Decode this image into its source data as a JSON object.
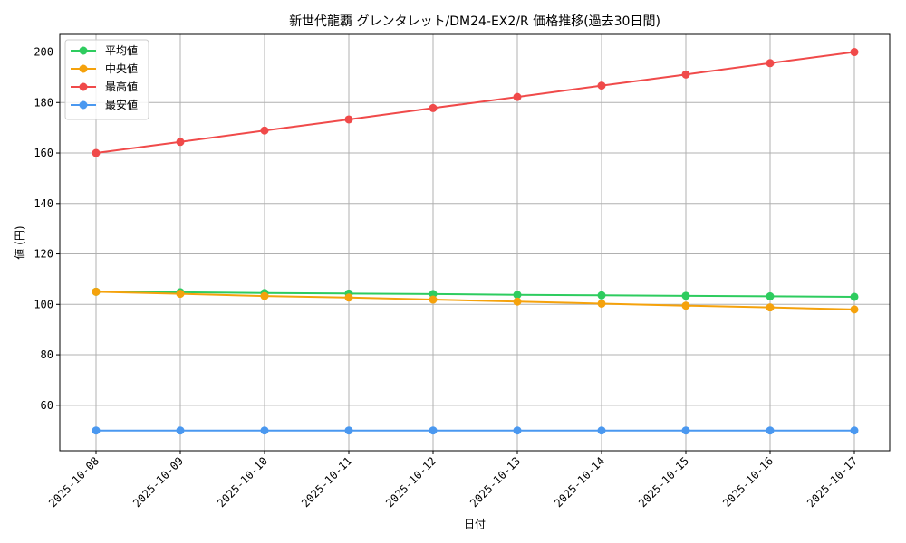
{
  "chart_data": {
    "type": "line",
    "title": "新世代龍覇 グレンタレット/DM24-EX2/R 価格推移(過去30日間)",
    "xlabel": "日付",
    "ylabel": "値 (円)",
    "categories": [
      "2025-10-08",
      "2025-10-09",
      "2025-10-10",
      "2025-10-11",
      "2025-10-12",
      "2025-10-13",
      "2025-10-14",
      "2025-10-15",
      "2025-10-16",
      "2025-10-17"
    ],
    "ylim": [
      42,
      207
    ],
    "yticks": [
      60,
      80,
      100,
      120,
      140,
      160,
      180,
      200
    ],
    "grid": true,
    "legend_position": "top-left",
    "series": [
      {
        "name": "平均値",
        "color": "#2ecc5f",
        "values": [
          105.0,
          104.8,
          104.5,
          104.3,
          104.1,
          103.8,
          103.6,
          103.4,
          103.2,
          103.0
        ]
      },
      {
        "name": "中央値",
        "color": "#f5a20c",
        "values": [
          105.0,
          104.2,
          103.3,
          102.7,
          101.9,
          101.1,
          100.3,
          99.5,
          98.8,
          98.0
        ]
      },
      {
        "name": "最高値",
        "color": "#f04a4a",
        "values": [
          160.0,
          164.4,
          168.9,
          173.3,
          177.8,
          182.2,
          186.7,
          191.1,
          195.6,
          200.0
        ]
      },
      {
        "name": "最安値",
        "color": "#4a98f0",
        "values": [
          50,
          50,
          50,
          50,
          50,
          50,
          50,
          50,
          50,
          50
        ]
      }
    ]
  }
}
